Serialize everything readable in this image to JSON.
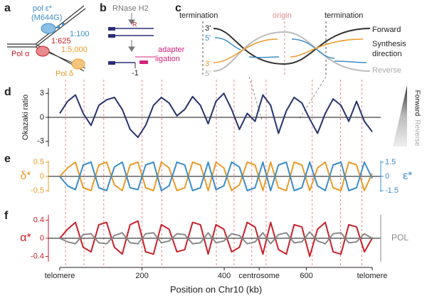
{
  "panel_labels": [
    "a",
    "b",
    "c",
    "d",
    "e",
    "f"
  ],
  "panel_a": {
    "texts": [
      "pol ε*",
      "(M644G)",
      "1:100",
      "Pol α",
      "1:625",
      "1:5,000",
      "Pol δ"
    ]
  },
  "panel_b": {
    "texts": [
      "RNase H2",
      "R",
      "adapter",
      "ligation",
      "-1"
    ]
  },
  "panel_c": {
    "texts": [
      "termination",
      "origin",
      "termination",
      "3'",
      "5'",
      "3'",
      "5'",
      "Forward",
      "Synthesis",
      "direction",
      "Reverse"
    ]
  },
  "origins": [
    14,
    59,
    107,
    200,
    248,
    381,
    424,
    467,
    502,
    614,
    683,
    735
  ],
  "chart_data": [
    {
      "type": "line",
      "ylabel": "Okazaki ratio",
      "side_labels": [
        "Forward",
        "Reverse"
      ],
      "ylim": [
        -4,
        4
      ],
      "yticks": [
        3,
        0,
        -3
      ],
      "xlim": [
        0,
        760
      ],
      "x": [
        0,
        19,
        38,
        57,
        76,
        95,
        114,
        133,
        152,
        171,
        190,
        209,
        228,
        247,
        266,
        285,
        304,
        323,
        342,
        361,
        380,
        399,
        418,
        437,
        456,
        475,
        494,
        513,
        532,
        551,
        570,
        589,
        608,
        627,
        646,
        665,
        684,
        703,
        722,
        741,
        760
      ],
      "series": [
        {
          "name": "Okazaki ratio",
          "color": "#27336e",
          "values": [
            0.5,
            2,
            2.8,
            0.5,
            -1,
            1.5,
            2.2,
            2.5,
            1,
            -1.5,
            -2.5,
            -1,
            1.5,
            2.5,
            1.8,
            0.2,
            1,
            2.6,
            1.5,
            -0.8,
            2,
            3,
            1,
            -1.5,
            0.5,
            -0.5,
            2.8,
            1.5,
            -2,
            0.8,
            2.5,
            1.8,
            -0.2,
            -2,
            0.5,
            2.3,
            1.5,
            -0.5,
            2,
            -0.5,
            -1.8
          ]
        }
      ]
    },
    {
      "type": "line",
      "ylabel": "δ*",
      "y2label": "ε*",
      "axis_color_by_series": true,
      "ylim": [
        -0.65,
        0.65
      ],
      "yticks": [
        0.5,
        0,
        -0.5
      ],
      "y2lim": [
        -1.95,
        1.95
      ],
      "y2ticks": [
        1.5,
        0,
        -1.5
      ],
      "xlim": [
        0,
        760
      ],
      "x": [
        0,
        19,
        38,
        57,
        76,
        95,
        114,
        133,
        152,
        171,
        190,
        209,
        228,
        247,
        266,
        285,
        304,
        323,
        342,
        361,
        380,
        399,
        418,
        437,
        456,
        475,
        494,
        513,
        532,
        551,
        570,
        589,
        608,
        627,
        646,
        665,
        684,
        703,
        722,
        741,
        760
      ],
      "series": [
        {
          "name": "δ*",
          "color": "#eb9a28",
          "values": [
            0,
            0.3,
            0.5,
            -0.4,
            -0.5,
            0.4,
            0.5,
            -0.3,
            -0.5,
            0.4,
            0.5,
            -0.4,
            -0.5,
            0.5,
            0.3,
            -0.5,
            -0.4,
            0.5,
            0.4,
            -0.5,
            0.5,
            0.3,
            -0.5,
            -0.3,
            0.5,
            0.4,
            -0.5,
            0.5,
            -0.4,
            -0.5,
            0.5,
            0.4,
            -0.5,
            0.3,
            0.5,
            -0.4,
            -0.5,
            0.5,
            0.4,
            -0.5,
            0.1
          ]
        },
        {
          "name": "ε*",
          "color": "#3b8dc9",
          "axis": "y2",
          "values": [
            0,
            -1,
            -1.4,
            1.2,
            1.5,
            -1.2,
            -1.5,
            1,
            1.5,
            -1.2,
            -1.4,
            1.2,
            1.5,
            -1.5,
            -1,
            1.5,
            1.2,
            -1.5,
            -1.2,
            1.5,
            -1.4,
            -1,
            1.5,
            1,
            -1.5,
            -1.2,
            1.5,
            -1.5,
            1.2,
            1.5,
            -1.5,
            -1.2,
            1.5,
            -1,
            -1.5,
            1.2,
            1.5,
            -1.5,
            -1.2,
            1.5,
            -0.2
          ]
        }
      ]
    },
    {
      "type": "line",
      "ylabel": "α*",
      "y2label": "POL",
      "axis_color_by_series": true,
      "xlabel": "Position on Chr10 (kb)",
      "ylim": [
        -0.58,
        0.58
      ],
      "yticks": [
        0.4,
        0,
        -0.4
      ],
      "y2lim": [
        -0.58,
        0.58
      ],
      "xlim": [
        0,
        760
      ],
      "xticks": [
        {
          "value": 0,
          "label": "telomere"
        },
        200,
        400,
        {
          "value": 485,
          "label": "centrosome"
        },
        600,
        {
          "value": 760,
          "label": "telomere"
        }
      ],
      "x": [
        0,
        19,
        38,
        57,
        76,
        95,
        114,
        133,
        152,
        171,
        190,
        209,
        228,
        247,
        266,
        285,
        304,
        323,
        342,
        361,
        380,
        399,
        418,
        437,
        456,
        475,
        494,
        513,
        532,
        551,
        570,
        589,
        608,
        627,
        646,
        665,
        684,
        703,
        722,
        741,
        760
      ],
      "series": [
        {
          "name": "α*",
          "color": "#c8202a",
          "values": [
            0,
            0.2,
            0.35,
            -0.2,
            -0.3,
            0.3,
            0.35,
            -0.2,
            -0.35,
            0.3,
            0.38,
            -0.3,
            -0.35,
            0.3,
            0.2,
            -0.3,
            -0.25,
            0.35,
            0.3,
            -0.35,
            0.3,
            0.2,
            -0.3,
            -0.2,
            0.35,
            0.25,
            -0.35,
            0.35,
            -0.25,
            -0.35,
            0.3,
            0.25,
            -0.4,
            0.2,
            0.35,
            -0.3,
            -0.35,
            0.3,
            0.25,
            -0.3,
            0
          ]
        },
        {
          "name": "POL",
          "color": "#8a8a8a",
          "axis": "y2",
          "values": [
            0,
            -0.08,
            -0.12,
            0.08,
            0.1,
            -0.1,
            -0.12,
            0.06,
            0.12,
            -0.1,
            -0.12,
            0.1,
            0.12,
            -0.1,
            -0.06,
            0.1,
            0.08,
            -0.12,
            -0.1,
            0.12,
            -0.1,
            -0.06,
            0.1,
            0.06,
            -0.12,
            -0.08,
            0.12,
            -0.12,
            0.08,
            0.12,
            -0.1,
            -0.08,
            0.14,
            -0.06,
            -0.12,
            0.1,
            0.12,
            -0.1,
            -0.08,
            0.1,
            0
          ]
        }
      ]
    }
  ]
}
